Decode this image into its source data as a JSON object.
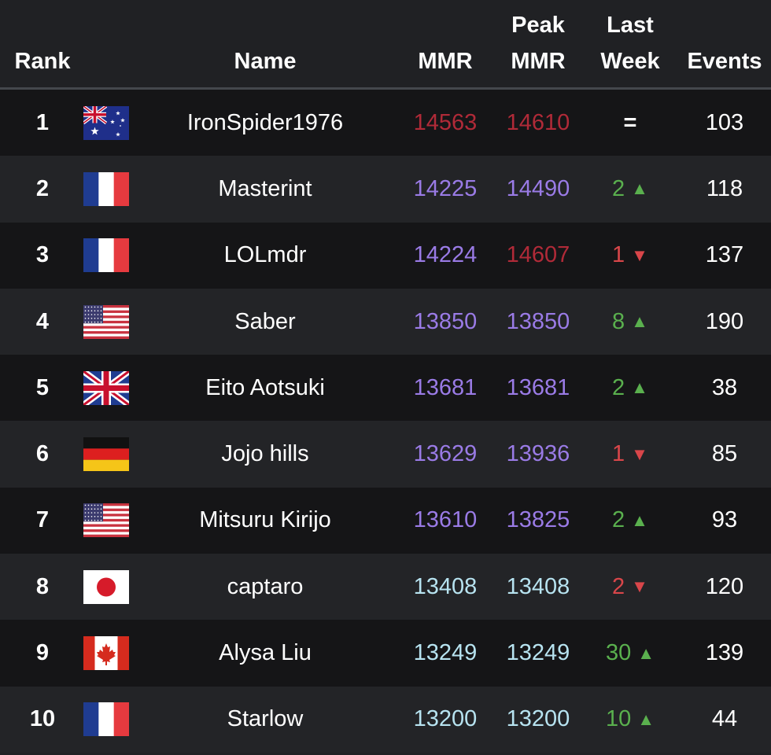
{
  "header": {
    "rank": "Rank",
    "name": "Name",
    "mmr": "MMR",
    "peak_line1": "Peak",
    "peak_line2": "MMR",
    "last_line1": "Last",
    "last_line2": "Week",
    "events": "Events"
  },
  "colors": {
    "background": "#202124",
    "row_dark": "#151517",
    "row_light": "#232427",
    "tier_red": "#b02a38",
    "tier_purple": "#9a7be6",
    "tier_cyan": "#b7e3f0",
    "trend_up": "#5ab04e",
    "trend_down": "#d9464a",
    "text": "#ffffff"
  },
  "rows": [
    {
      "rank": "1",
      "flag": "au-flag-icon",
      "name": "IronSpider1976",
      "mmr": "14563",
      "peak": "14610",
      "trend_value": "=",
      "trend_arrow": "",
      "trend": "same",
      "events": "103"
    },
    {
      "rank": "2",
      "flag": "fr-flag-icon",
      "name": "Masterint",
      "mmr": "14225",
      "peak": "14490",
      "trend_value": "2",
      "trend_arrow": "▲",
      "trend": "up",
      "events": "118"
    },
    {
      "rank": "3",
      "flag": "fr-flag-icon",
      "name": "LOLmdr",
      "mmr": "14224",
      "peak": "14607",
      "trend_value": "1",
      "trend_arrow": "▼",
      "trend": "down",
      "events": "137"
    },
    {
      "rank": "4",
      "flag": "us-flag-icon",
      "name": "Saber",
      "mmr": "13850",
      "peak": "13850",
      "trend_value": "8",
      "trend_arrow": "▲",
      "trend": "up",
      "events": "190"
    },
    {
      "rank": "5",
      "flag": "gb-flag-icon",
      "name": "Eito Aotsuki",
      "mmr": "13681",
      "peak": "13681",
      "trend_value": "2",
      "trend_arrow": "▲",
      "trend": "up",
      "events": "38"
    },
    {
      "rank": "6",
      "flag": "de-flag-icon",
      "name": "Jojo hills",
      "mmr": "13629",
      "peak": "13936",
      "trend_value": "1",
      "trend_arrow": "▼",
      "trend": "down",
      "events": "85"
    },
    {
      "rank": "7",
      "flag": "us-flag-icon",
      "name": "Mitsuru Kirijo",
      "mmr": "13610",
      "peak": "13825",
      "trend_value": "2",
      "trend_arrow": "▲",
      "trend": "up",
      "events": "93"
    },
    {
      "rank": "8",
      "flag": "jp-flag-icon",
      "name": "captaro",
      "mmr": "13408",
      "peak": "13408",
      "trend_value": "2",
      "trend_arrow": "▼",
      "trend": "down",
      "events": "120"
    },
    {
      "rank": "9",
      "flag": "ca-flag-icon",
      "name": "Alysa Liu",
      "mmr": "13249",
      "peak": "13249",
      "trend_value": "30",
      "trend_arrow": "▲",
      "trend": "up",
      "events": "139"
    },
    {
      "rank": "10",
      "flag": "fr-flag-icon",
      "name": "Starlow",
      "mmr": "13200",
      "peak": "13200",
      "trend_value": "10",
      "trend_arrow": "▲",
      "trend": "up",
      "events": "44"
    }
  ]
}
